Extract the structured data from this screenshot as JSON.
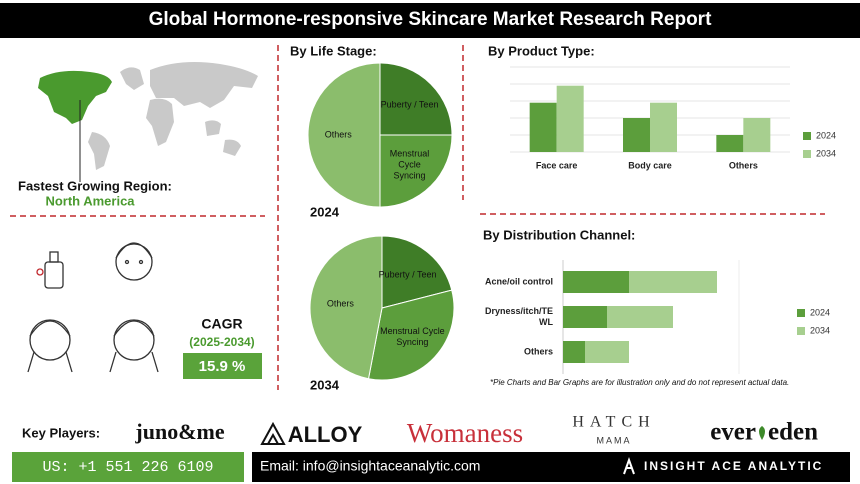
{
  "header": {
    "title": "Global Hormone-responsive Skincare Market Research Report"
  },
  "region": {
    "label": "Fastest Growing Region:",
    "value": "North America"
  },
  "cagr": {
    "label": "CAGR",
    "period": "(2025-2034)",
    "value": "15.9 %"
  },
  "chart_data": [
    {
      "type": "pie",
      "title": "By Life Stage:",
      "year": "2024",
      "categories": [
        "Puberty / Teen",
        "Menstrual Cycle Syncing",
        "Others"
      ],
      "values": [
        25,
        25,
        50
      ],
      "colors": [
        "#3f7d27",
        "#5c9e3c",
        "#8bbd6c"
      ]
    },
    {
      "type": "pie",
      "year": "2034",
      "categories": [
        "Puberty / Teen",
        "Menstrual Cycle Syncing",
        "Others"
      ],
      "values": [
        21,
        32,
        47
      ],
      "colors": [
        "#3f7d27",
        "#5c9e3c",
        "#8bbd6c"
      ]
    },
    {
      "type": "bar",
      "title": "By Product Type:",
      "categories": [
        "Face care",
        "Body care",
        "Others"
      ],
      "series": [
        {
          "name": "2024",
          "color": "#5c9e3c",
          "values": [
            2.9,
            2.0,
            1.0
          ]
        },
        {
          "name": "2034",
          "color": "#a7cf8f",
          "values": [
            3.9,
            2.9,
            2.0
          ]
        }
      ],
      "ylim": [
        0,
        5
      ],
      "legend": "right"
    },
    {
      "type": "stacked-barh",
      "title": "By Distribution Channel:",
      "categories": [
        "Acne/oil control",
        "Dryness/itch/TE WL",
        "Others"
      ],
      "series": [
        {
          "name": "2024",
          "color": "#5c9e3c",
          "values": [
            3,
            2,
            1
          ]
        },
        {
          "name": "2034",
          "color": "#a7cf8f",
          "values": [
            4,
            3,
            2
          ]
        }
      ],
      "xlim": [
        0,
        8
      ],
      "legend": "right",
      "note": "*Pie Charts and Bar Graphs are for illustration only and do not represent actual data."
    }
  ],
  "key_players": {
    "label": "Key Players:",
    "names": [
      "juno&me",
      "ALLOY",
      "Womaness",
      {
        "name": "HATCH",
        "sub": "MAMA"
      },
      {
        "left": "ever",
        "right": "eden"
      }
    ]
  },
  "contact": {
    "phone": "US: +1 551 226 6109",
    "email": "Email: info@insightaceanalytic.com",
    "brand": "INSIGHT ACE ANALYTIC"
  }
}
